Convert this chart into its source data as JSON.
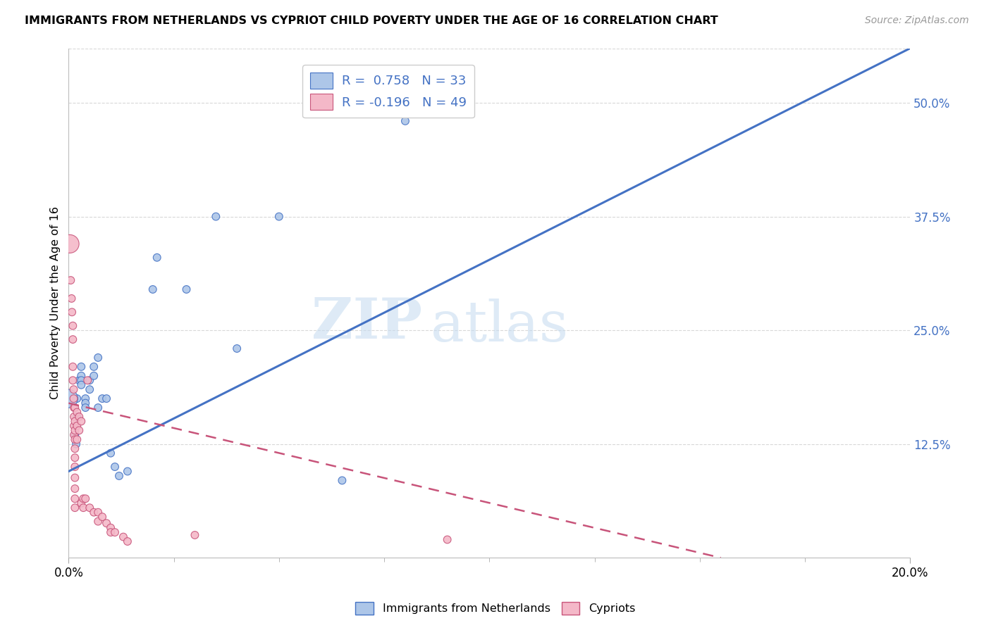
{
  "title": "IMMIGRANTS FROM NETHERLANDS VS CYPRIOT CHILD POVERTY UNDER THE AGE OF 16 CORRELATION CHART",
  "source": "Source: ZipAtlas.com",
  "ylabel": "Child Poverty Under the Age of 16",
  "legend_label1": "Immigrants from Netherlands",
  "legend_label2": "Cypriots",
  "R1": 0.758,
  "N1": 33,
  "R2": -0.196,
  "N2": 49,
  "color_blue": "#adc6e8",
  "color_blue_line": "#4472c4",
  "color_pink": "#f4b8c8",
  "color_pink_line": "#c8547a",
  "color_right_axis": "#4472c4",
  "watermark_zip": "ZIP",
  "watermark_atlas": "atlas",
  "blue_dots": [
    [
      0.0015,
      0.135
    ],
    [
      0.0018,
      0.125
    ],
    [
      0.002,
      0.155
    ],
    [
      0.002,
      0.175
    ],
    [
      0.0025,
      0.195
    ],
    [
      0.003,
      0.21
    ],
    [
      0.003,
      0.2
    ],
    [
      0.003,
      0.195
    ],
    [
      0.003,
      0.19
    ],
    [
      0.004,
      0.175
    ],
    [
      0.004,
      0.17
    ],
    [
      0.004,
      0.165
    ],
    [
      0.005,
      0.195
    ],
    [
      0.005,
      0.185
    ],
    [
      0.006,
      0.2
    ],
    [
      0.006,
      0.21
    ],
    [
      0.007,
      0.22
    ],
    [
      0.007,
      0.165
    ],
    [
      0.008,
      0.175
    ],
    [
      0.009,
      0.175
    ],
    [
      0.01,
      0.115
    ],
    [
      0.011,
      0.1
    ],
    [
      0.012,
      0.09
    ],
    [
      0.014,
      0.095
    ],
    [
      0.02,
      0.295
    ],
    [
      0.021,
      0.33
    ],
    [
      0.028,
      0.295
    ],
    [
      0.035,
      0.375
    ],
    [
      0.04,
      0.23
    ],
    [
      0.05,
      0.375
    ],
    [
      0.065,
      0.085
    ],
    [
      0.08,
      0.48
    ],
    [
      0.0,
      0.175
    ]
  ],
  "blue_sizes": [
    60,
    60,
    60,
    60,
    60,
    60,
    60,
    60,
    60,
    60,
    60,
    60,
    60,
    60,
    60,
    60,
    60,
    60,
    60,
    60,
    60,
    60,
    60,
    60,
    60,
    60,
    60,
    60,
    60,
    60,
    60,
    60,
    350
  ],
  "pink_dots": [
    [
      0.0003,
      0.345
    ],
    [
      0.0005,
      0.305
    ],
    [
      0.0007,
      0.285
    ],
    [
      0.0008,
      0.27
    ],
    [
      0.001,
      0.255
    ],
    [
      0.001,
      0.24
    ],
    [
      0.001,
      0.21
    ],
    [
      0.001,
      0.195
    ],
    [
      0.0012,
      0.185
    ],
    [
      0.0012,
      0.175
    ],
    [
      0.0013,
      0.165
    ],
    [
      0.0013,
      0.155
    ],
    [
      0.0013,
      0.145
    ],
    [
      0.0013,
      0.135
    ],
    [
      0.0015,
      0.165
    ],
    [
      0.0015,
      0.15
    ],
    [
      0.0015,
      0.14
    ],
    [
      0.0015,
      0.13
    ],
    [
      0.0015,
      0.12
    ],
    [
      0.0015,
      0.11
    ],
    [
      0.0015,
      0.1
    ],
    [
      0.0015,
      0.088
    ],
    [
      0.0015,
      0.076
    ],
    [
      0.0015,
      0.065
    ],
    [
      0.0015,
      0.055
    ],
    [
      0.002,
      0.16
    ],
    [
      0.002,
      0.145
    ],
    [
      0.002,
      0.13
    ],
    [
      0.0025,
      0.155
    ],
    [
      0.0025,
      0.14
    ],
    [
      0.003,
      0.15
    ],
    [
      0.003,
      0.06
    ],
    [
      0.0035,
      0.065
    ],
    [
      0.0035,
      0.055
    ],
    [
      0.004,
      0.065
    ],
    [
      0.0045,
      0.195
    ],
    [
      0.005,
      0.055
    ],
    [
      0.006,
      0.05
    ],
    [
      0.007,
      0.05
    ],
    [
      0.007,
      0.04
    ],
    [
      0.008,
      0.045
    ],
    [
      0.009,
      0.038
    ],
    [
      0.01,
      0.033
    ],
    [
      0.01,
      0.028
    ],
    [
      0.011,
      0.028
    ],
    [
      0.013,
      0.023
    ],
    [
      0.014,
      0.018
    ],
    [
      0.03,
      0.025
    ],
    [
      0.09,
      0.02
    ]
  ],
  "pink_sizes": [
    350,
    60,
    60,
    60,
    60,
    60,
    60,
    60,
    60,
    60,
    60,
    60,
    60,
    60,
    60,
    60,
    60,
    60,
    60,
    60,
    60,
    60,
    60,
    60,
    60,
    60,
    60,
    60,
    60,
    60,
    60,
    60,
    60,
    60,
    60,
    60,
    60,
    60,
    60,
    60,
    60,
    60,
    60,
    60,
    60,
    60,
    60,
    60,
    60
  ],
  "xlim": [
    0.0,
    0.2
  ],
  "ylim": [
    0.0,
    0.56
  ],
  "xtick_left": 0.0,
  "xtick_right": 0.2,
  "yticks_right": [
    0.125,
    0.25,
    0.375,
    0.5
  ],
  "ytick_labels_right": [
    "12.5%",
    "25.0%",
    "37.5%",
    "50.0%"
  ],
  "grid_color": "#d8d8d8",
  "bg_color": "#ffffff",
  "blue_line_x": [
    0.0,
    0.2
  ],
  "blue_line_y": [
    0.095,
    0.56
  ],
  "pink_line_x": [
    0.0,
    0.155
  ],
  "pink_line_y": [
    0.17,
    0.0
  ]
}
